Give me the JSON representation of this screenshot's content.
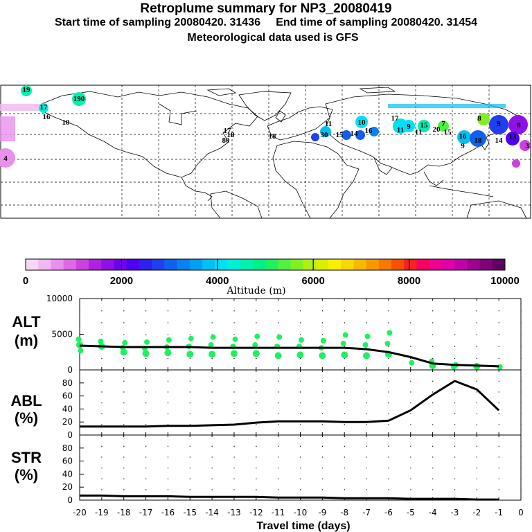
{
  "header": {
    "title": "Retroplume summary for NP3_20080419",
    "subtitle": "Start time of sampling 20080420. 31436     End time of sampling 20080420. 31454",
    "met": "Meteorological data used is GFS"
  },
  "colorbar": {
    "ticks": [
      "0",
      "2000",
      "4000",
      "6000",
      "8000",
      "10000"
    ],
    "label": "Altitude (m)",
    "colors": [
      "#f6d8f6",
      "#f0b8f0",
      "#e890ec",
      "#de68e6",
      "#cc40e0",
      "#b020e0",
      "#9010e8",
      "#7000ee",
      "#5000f0",
      "#3020f0",
      "#2040f0",
      "#1060f0",
      "#0a80f4",
      "#00a0f4",
      "#00c0f4",
      "#00e0f4",
      "#00f0d8",
      "#00f0b0",
      "#00f088",
      "#20f060",
      "#50f040",
      "#80f020",
      "#b0f010",
      "#d8f000",
      "#f8f000",
      "#f8d800",
      "#f8b800",
      "#f89800",
      "#f87800",
      "#f85000",
      "#f82020",
      "#f80060",
      "#f00090",
      "#e000a8",
      "#c000a8",
      "#a00090",
      "#800078",
      "#600060"
    ]
  },
  "panels": {
    "alt": {
      "label1": "ALT",
      "label2": "(m)",
      "yticks": [
        "0",
        "5000",
        "10000"
      ]
    },
    "abl": {
      "label1": "ABL",
      "label2": "(%)",
      "yticks": [
        "0",
        "20",
        "40",
        "60",
        "80"
      ]
    },
    "str": {
      "label1": "STR",
      "label2": "(%)",
      "yticks": [
        "0",
        "20",
        "40",
        "60",
        "80"
      ]
    }
  },
  "xaxis": {
    "ticks": [
      "-20",
      "-19",
      "-18",
      "-17",
      "-16",
      "-15",
      "-14",
      "-13",
      "-12",
      "-11",
      "-10",
      "-9",
      "-8",
      "-7",
      "-6",
      "-5",
      "-4",
      "-3",
      "-2",
      "-1",
      "0"
    ],
    "label": "Travel time (days)"
  },
  "map_labels": [
    "19",
    "190",
    "17",
    "16",
    "10",
    "17",
    "18",
    "80",
    "18",
    "11",
    "30",
    "15",
    "14",
    "16",
    "10",
    "17",
    "11",
    "9",
    "15",
    "11",
    "20",
    "7",
    "15",
    "16",
    "18",
    "9",
    "8",
    "9",
    "8",
    "14",
    "13",
    "4",
    "3"
  ],
  "chart_data": [
    {
      "type": "line",
      "name": "ALT",
      "x": [
        -20,
        -19,
        -18,
        -17,
        -16,
        -15,
        -14,
        -13,
        -12,
        -11,
        -10,
        -9,
        -8,
        -7,
        -6,
        -5,
        -4,
        -3,
        -2,
        -1
      ],
      "y": [
        3400,
        3300,
        3200,
        3200,
        3200,
        3200,
        3100,
        3100,
        3100,
        3100,
        3100,
        3100,
        3100,
        2900,
        2500,
        1800,
        900,
        700,
        600,
        500
      ],
      "ylim": [
        0,
        10000
      ],
      "ylabel": "ALT (m)",
      "scatter_color": "#20f060",
      "scatter_x": [
        -20,
        -20,
        -20,
        -19,
        -19,
        -18,
        -18,
        -18,
        -17,
        -17,
        -17,
        -16,
        -16,
        -16,
        -15,
        -15,
        -15,
        -14,
        -14,
        -14,
        -13,
        -13,
        -13,
        -12,
        -12,
        -12,
        -11,
        -11,
        -11,
        -10,
        -10,
        -10,
        -9,
        -9,
        -9,
        -8,
        -8,
        -8,
        -7,
        -7,
        -7,
        -6,
        -6,
        -6,
        -5,
        -4,
        -4,
        -3,
        -3,
        -2,
        -1
      ],
      "scatter_y": [
        4300,
        3500,
        2700,
        4000,
        3300,
        3800,
        3100,
        2500,
        3900,
        3000,
        2300,
        4200,
        3200,
        2400,
        4400,
        3300,
        2200,
        4600,
        3500,
        2200,
        4300,
        3300,
        2300,
        4700,
        3500,
        2300,
        4600,
        3300,
        2000,
        4200,
        3300,
        2100,
        4100,
        3100,
        2000,
        4900,
        3700,
        2100,
        4700,
        3500,
        2000,
        5200,
        3700,
        2200,
        1000,
        1200,
        600,
        700,
        400,
        500,
        400
      ]
    },
    {
      "type": "line",
      "name": "ABL",
      "x": [
        -20,
        -19,
        -18,
        -17,
        -16,
        -15,
        -14,
        -13,
        -12,
        -11,
        -10,
        -9,
        -8,
        -7,
        -6,
        -5,
        -4,
        -3,
        -2,
        -1
      ],
      "y": [
        13,
        13,
        13,
        13,
        14,
        14,
        15,
        16,
        19,
        21,
        21,
        21,
        20,
        20,
        22,
        38,
        62,
        83,
        70,
        38
      ],
      "ylim": [
        0,
        100
      ],
      "ylabel": "ABL (%)"
    },
    {
      "type": "line",
      "name": "STR",
      "x": [
        -20,
        -19,
        -18,
        -17,
        -16,
        -15,
        -14,
        -13,
        -12,
        -11,
        -10,
        -9,
        -8,
        -7,
        -6,
        -5,
        -4,
        -3,
        -2,
        -1
      ],
      "y": [
        7,
        7,
        6,
        6,
        6,
        5,
        5,
        5,
        5,
        4,
        4,
        4,
        3,
        3,
        3,
        2,
        2,
        2,
        1,
        1
      ],
      "ylim": [
        0,
        100
      ],
      "ylabel": "STR (%)",
      "xlabel": "Travel time (days)"
    }
  ]
}
